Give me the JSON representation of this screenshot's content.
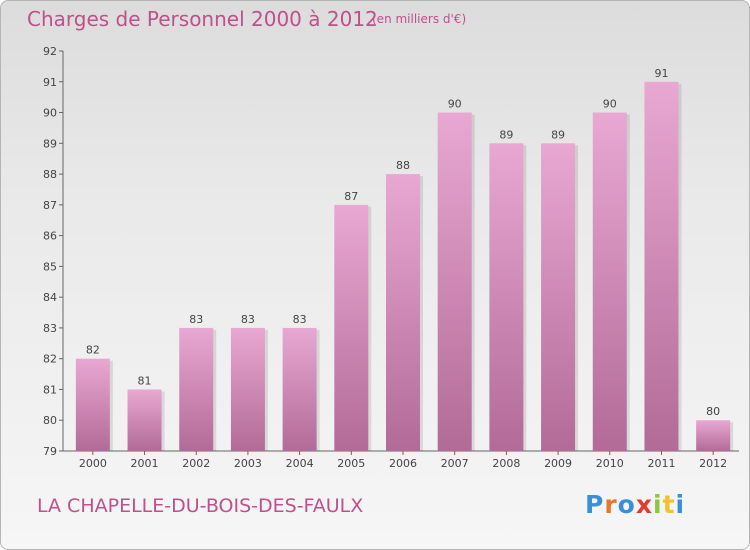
{
  "header": {
    "title": "Charges de Personnel 2000 à 2012",
    "subtitle": "(en milliers d'€)"
  },
  "footer": {
    "commune": "LA CHAPELLE-DU-BOIS-DES-FAULX",
    "logo": "Proxiti",
    "logo_colors": [
      "#3b8fd9",
      "#e8762b",
      "#3b8fd9",
      "#e23b2b",
      "#8dc63f",
      "#f2c12e",
      "#3b8fd9"
    ]
  },
  "colors": {
    "title": "#c0508a",
    "bar_top": "#e8a8d2",
    "bar_bottom": "#b26b97"
  },
  "chart_data": {
    "type": "bar",
    "categories": [
      "2000",
      "2001",
      "2002",
      "2003",
      "2004",
      "2005",
      "2006",
      "2007",
      "2008",
      "2009",
      "2010",
      "2011",
      "2012"
    ],
    "values": [
      82,
      81,
      83,
      83,
      83,
      87,
      88,
      90,
      89,
      89,
      90,
      91,
      80
    ],
    "ylim": [
      79,
      92
    ],
    "yticks": [
      79,
      80,
      81,
      82,
      83,
      84,
      85,
      86,
      87,
      88,
      89,
      90,
      91,
      92
    ],
    "grid": false,
    "title": "Charges de Personnel 2000 à 2012",
    "xlabel": "",
    "ylabel": ""
  }
}
